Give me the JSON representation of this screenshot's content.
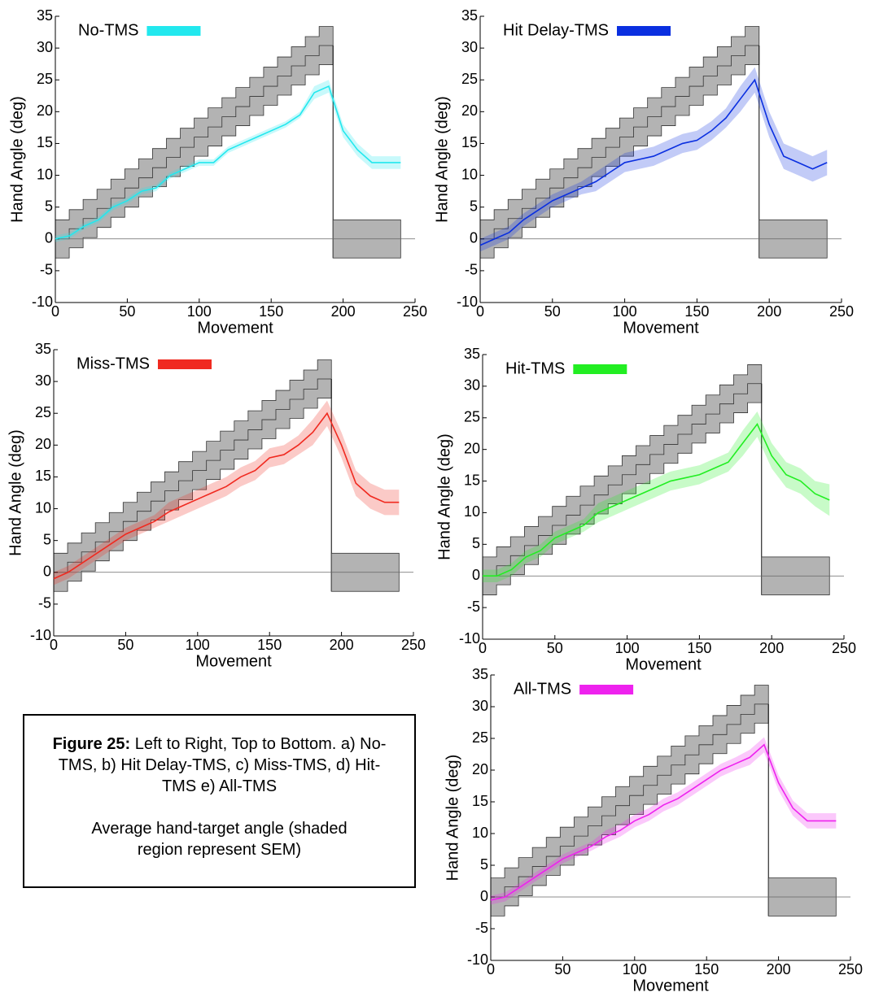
{
  "chart_data": [
    {
      "type": "line",
      "y_label": "Hand Angle (deg)",
      "x_label": "Movement",
      "xlim": [
        0,
        250
      ],
      "ylim": [
        -10,
        35
      ],
      "xticks": [
        0,
        50,
        100,
        150,
        200,
        250
      ],
      "yticks": [
        -10,
        -5,
        0,
        5,
        10,
        15,
        20,
        25,
        30,
        35
      ],
      "x": [
        0,
        10,
        20,
        30,
        40,
        50,
        60,
        70,
        80,
        90,
        100,
        110,
        120,
        130,
        140,
        150,
        160,
        170,
        180,
        190,
        200,
        210,
        220,
        230,
        240
      ],
      "series": [
        {
          "name": "No-TMS",
          "color": "#22e8ee",
          "values": [
            0,
            0.5,
            2,
            3,
            5,
            6,
            7.5,
            8,
            10,
            11,
            12,
            12,
            14,
            15,
            16,
            17,
            18,
            19.5,
            23,
            24,
            17,
            14,
            12,
            12,
            12
          ],
          "sem": [
            0.5,
            0.5,
            0.5,
            0.5,
            0.5,
            0.5,
            0.5,
            0.5,
            0.5,
            0.5,
            0.5,
            0.5,
            0.5,
            0.5,
            0.5,
            0.5,
            0.5,
            0.5,
            1,
            1,
            1,
            1,
            1,
            1,
            1
          ]
        }
      ]
    },
    {
      "type": "line",
      "y_label": "Hand Angle (deg)",
      "x_label": "Movement",
      "xlim": [
        0,
        250
      ],
      "ylim": [
        -10,
        35
      ],
      "xticks": [
        0,
        50,
        100,
        150,
        200,
        250
      ],
      "yticks": [
        -10,
        -5,
        0,
        5,
        10,
        15,
        20,
        25,
        30,
        35
      ],
      "x": [
        0,
        10,
        20,
        30,
        40,
        50,
        60,
        70,
        80,
        90,
        100,
        110,
        120,
        130,
        140,
        150,
        160,
        170,
        180,
        190,
        200,
        210,
        220,
        230,
        240
      ],
      "series": [
        {
          "name": "Hit Delay-TMS",
          "color": "#0a2fe0",
          "values": [
            -1,
            0,
            1,
            3,
            4.5,
            6,
            7,
            8,
            9,
            10.5,
            12,
            12.5,
            13,
            14,
            15,
            15.5,
            17,
            19,
            22,
            25,
            18,
            13,
            12,
            11,
            12
          ],
          "sem": [
            1,
            1,
            1,
            1,
            1,
            1,
            1,
            1,
            1.5,
            1.5,
            1.5,
            1.5,
            1.5,
            1.5,
            1.5,
            1.5,
            1.5,
            1.5,
            2,
            2,
            2,
            2,
            2,
            2,
            2
          ]
        }
      ]
    },
    {
      "type": "line",
      "y_label": "Hand Angle (deg)",
      "x_label": "Movement",
      "xlim": [
        0,
        250
      ],
      "ylim": [
        -10,
        35
      ],
      "xticks": [
        0,
        50,
        100,
        150,
        200,
        250
      ],
      "yticks": [
        -10,
        -5,
        0,
        5,
        10,
        15,
        20,
        25,
        30,
        35
      ],
      "x": [
        0,
        10,
        20,
        30,
        40,
        50,
        60,
        70,
        80,
        90,
        100,
        110,
        120,
        130,
        140,
        150,
        160,
        170,
        180,
        190,
        200,
        210,
        220,
        230,
        240
      ],
      "series": [
        {
          "name": "Miss-TMS",
          "color": "#f02a20",
          "values": [
            -1,
            0,
            1.5,
            3,
            4.5,
            6,
            7,
            8,
            9.5,
            10.5,
            11.5,
            12.5,
            13.5,
            15,
            16,
            18,
            18.5,
            20,
            22,
            25,
            20,
            14,
            12,
            11,
            11
          ],
          "sem": [
            1,
            1,
            1,
            1,
            1,
            1,
            1,
            1,
            1.5,
            1.5,
            1.5,
            1.5,
            1.5,
            1.5,
            1.5,
            1.5,
            1.5,
            1.5,
            2,
            2,
            2,
            2,
            2,
            2,
            2
          ]
        }
      ]
    },
    {
      "type": "line",
      "y_label": "Hand Angle (deg)",
      "x_label": "Movement",
      "xlim": [
        0,
        250
      ],
      "ylim": [
        -10,
        35
      ],
      "xticks": [
        0,
        50,
        100,
        150,
        200,
        250
      ],
      "yticks": [
        -10,
        -5,
        0,
        5,
        10,
        15,
        20,
        25,
        30,
        35
      ],
      "x": [
        0,
        10,
        20,
        30,
        40,
        50,
        60,
        70,
        80,
        90,
        100,
        110,
        120,
        130,
        140,
        150,
        160,
        170,
        180,
        190,
        200,
        210,
        220,
        230,
        240
      ],
      "series": [
        {
          "name": "Hit-TMS",
          "color": "#22ee22",
          "values": [
            0,
            0,
            1,
            3,
            4,
            6,
            7,
            8,
            10,
            11,
            12,
            13,
            14,
            15,
            15.5,
            16,
            17,
            18,
            21,
            24,
            19,
            16,
            15,
            13,
            12
          ],
          "sem": [
            1,
            1,
            1,
            1,
            1,
            1,
            1,
            1,
            1.5,
            1.5,
            1.5,
            1.5,
            1.5,
            1.5,
            1.5,
            1.5,
            1.5,
            1.5,
            2,
            2,
            2,
            2,
            2,
            2,
            2.5
          ]
        }
      ]
    },
    {
      "type": "line",
      "y_label": "Hand Angle (deg)",
      "x_label": "Movement",
      "xlim": [
        0,
        250
      ],
      "ylim": [
        -10,
        35
      ],
      "xticks": [
        0,
        50,
        100,
        150,
        200,
        250
      ],
      "yticks": [
        -10,
        -5,
        0,
        5,
        10,
        15,
        20,
        25,
        30,
        35
      ],
      "x": [
        0,
        10,
        20,
        30,
        40,
        50,
        60,
        70,
        80,
        90,
        100,
        110,
        120,
        130,
        140,
        150,
        160,
        170,
        180,
        190,
        200,
        210,
        220,
        230,
        240
      ],
      "series": [
        {
          "name": "All-TMS",
          "color": "#ee22ee",
          "values": [
            -0.5,
            0,
            1.5,
            3,
            4.5,
            6,
            7,
            8,
            9.5,
            10.5,
            12,
            13,
            14.5,
            15.5,
            17,
            18.5,
            20,
            21,
            22,
            24,
            18,
            14,
            12,
            12,
            12
          ],
          "sem": [
            0.7,
            0.7,
            0.7,
            0.7,
            0.7,
            0.7,
            0.7,
            0.7,
            1,
            1,
            1,
            1,
            1,
            1,
            1,
            1,
            1,
            1,
            1.2,
            1.2,
            1.2,
            1.2,
            1.2,
            1.2,
            1.2
          ]
        }
      ]
    }
  ],
  "target_band": {
    "x": [
      0,
      9.65,
      19.3,
      28.95,
      38.6,
      48.25,
      57.9,
      67.55,
      77.2,
      86.85,
      96.5,
      106.15,
      115.8,
      125.45,
      135.1,
      144.75,
      154.4,
      164.05,
      173.7,
      183.35
    ],
    "end": 193,
    "upper": [
      3,
      4.6,
      6.2,
      7.8,
      9.4,
      11,
      12.6,
      14.2,
      15.8,
      17.4,
      19,
      20.6,
      22.2,
      23.8,
      25.4,
      27,
      28.6,
      30.2,
      31.8,
      33.4
    ],
    "lower": [
      -3,
      -1.4,
      0.2,
      1.8,
      3.4,
      5,
      6.6,
      8.2,
      9.8,
      11.4,
      13,
      14.6,
      16.2,
      17.8,
      19.4,
      21,
      22.6,
      24.2,
      25.8,
      27.4
    ],
    "washout": {
      "x": [
        193,
        240
      ],
      "range": [
        -3,
        3
      ]
    }
  },
  "caption": {
    "label": "Figure 25:",
    "text": "Left to Right, Top to Bottom. a) No-TMS, b)  Hit Delay-TMS, c) Miss-TMS, d) Hit-TMS e) All-TMS",
    "note": "Average hand-target angle (shaded region represent SEM)"
  }
}
